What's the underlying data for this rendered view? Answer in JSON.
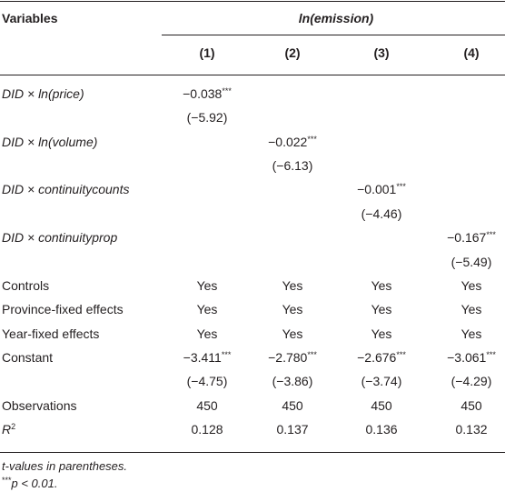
{
  "header": {
    "variables": "Variables",
    "dependent": "ln(emission)",
    "columns": [
      "(1)",
      "(2)",
      "(3)",
      "(4)"
    ]
  },
  "rows": [
    {
      "label": "DID × ln(price)",
      "italic": true,
      "cells": [
        {
          "value": "−0.038",
          "stars": "***"
        },
        null,
        null,
        null
      ]
    },
    {
      "cells": [
        {
          "value": "(−5.92)"
        },
        null,
        null,
        null
      ]
    },
    {
      "label": "DID × ln(volume)",
      "italic": true,
      "cells": [
        null,
        {
          "value": "−0.022",
          "stars": "***"
        },
        null,
        null
      ]
    },
    {
      "cells": [
        null,
        {
          "value": "(−6.13)"
        },
        null,
        null
      ]
    },
    {
      "label": "DID × continuitycounts",
      "italic": true,
      "cells": [
        null,
        null,
        {
          "value": "−0.001",
          "stars": "***"
        },
        null
      ]
    },
    {
      "cells": [
        null,
        null,
        {
          "value": "(−4.46)"
        },
        null
      ]
    },
    {
      "label": "DID × continuityprop",
      "italic": true,
      "cells": [
        null,
        null,
        null,
        {
          "value": "−0.167",
          "stars": "***"
        }
      ]
    },
    {
      "cells": [
        null,
        null,
        null,
        {
          "value": "(−5.49)"
        }
      ]
    },
    {
      "label": "Controls",
      "cells": [
        {
          "value": "Yes"
        },
        {
          "value": "Yes"
        },
        {
          "value": "Yes"
        },
        {
          "value": "Yes"
        }
      ]
    },
    {
      "label": "Province-fixed effects",
      "cells": [
        {
          "value": "Yes"
        },
        {
          "value": "Yes"
        },
        {
          "value": "Yes"
        },
        {
          "value": "Yes"
        }
      ]
    },
    {
      "label": "Year-fixed effects",
      "cells": [
        {
          "value": "Yes"
        },
        {
          "value": "Yes"
        },
        {
          "value": "Yes"
        },
        {
          "value": "Yes"
        }
      ]
    },
    {
      "label": "Constant",
      "cells": [
        {
          "value": "−3.411",
          "stars": "***"
        },
        {
          "value": "−2.780",
          "stars": "***"
        },
        {
          "value": "−2.676",
          "stars": "***"
        },
        {
          "value": "−3.061",
          "stars": "***"
        }
      ]
    },
    {
      "cells": [
        {
          "value": "(−4.75)"
        },
        {
          "value": "(−3.86)"
        },
        {
          "value": "(−3.74)"
        },
        {
          "value": "(−4.29)"
        }
      ]
    },
    {
      "label": "Observations",
      "cells": [
        {
          "value": "450"
        },
        {
          "value": "450"
        },
        {
          "value": "450"
        },
        {
          "value": "450"
        }
      ]
    },
    {
      "label": "R",
      "label_sup": "2",
      "italic": true,
      "cells": [
        {
          "value": "0.128"
        },
        {
          "value": "0.137"
        },
        {
          "value": "0.136"
        },
        {
          "value": "0.132"
        }
      ]
    }
  ],
  "notes": [
    {
      "text": "t-values in parentheses."
    },
    {
      "stars": "***",
      "text": "p < 0.01."
    }
  ]
}
